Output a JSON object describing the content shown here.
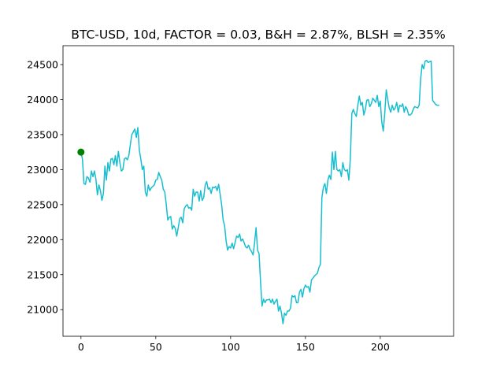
{
  "chart_data": {
    "type": "line",
    "title": "BTC-USD, 10d, FACTOR = 0.03, B&H = 2.87%, BLSH = 2.35%",
    "xlabel": "",
    "ylabel": "",
    "xlim": [
      -12,
      249
    ],
    "ylim": [
      20620,
      24770
    ],
    "x_ticks": [
      0,
      50,
      100,
      150,
      200
    ],
    "y_ticks": [
      21000,
      21500,
      22000,
      22500,
      23000,
      23500,
      24000,
      24500
    ],
    "grid": false,
    "line_color": "#17becf",
    "marker_color": "#008000",
    "markers": [
      {
        "x": 0,
        "y": 23250
      }
    ],
    "series": [
      {
        "x_start": 0,
        "x_step": 1,
        "values": [
          23250,
          23150,
          22800,
          22790,
          22900,
          22880,
          22820,
          22980,
          22900,
          22980,
          22860,
          22640,
          22780,
          22700,
          22560,
          22660,
          23050,
          22850,
          23100,
          22980,
          23150,
          23160,
          23070,
          23200,
          23050,
          23260,
          23100,
          22980,
          23000,
          23150,
          23170,
          23140,
          23200,
          23360,
          23500,
          23540,
          23580,
          23460,
          23600,
          23280,
          23150,
          23000,
          23050,
          22680,
          22620,
          22780,
          22700,
          22740,
          22760,
          22780,
          22850,
          22860,
          22960,
          22900,
          22850,
          22720,
          22680,
          22500,
          22280,
          22320,
          22330,
          22150,
          22200,
          22160,
          22050,
          22170,
          22300,
          22320,
          22240,
          22440,
          22480,
          22500,
          22450,
          22460,
          22420,
          22720,
          22620,
          22680,
          22680,
          22550,
          22700,
          22560,
          22600,
          22780,
          22830,
          22720,
          22740,
          22660,
          22750,
          22740,
          22760,
          22700,
          22790,
          22650,
          22500,
          22280,
          22200,
          21980,
          21850,
          21900,
          21880,
          21950,
          21870,
          21960,
          22050,
          22030,
          22080,
          21980,
          22010,
          21960,
          21900,
          21880,
          21920,
          21860,
          21830,
          21780,
          21950,
          22170,
          21850,
          21800,
          21400,
          21050,
          21150,
          21100,
          21140,
          21140,
          21150,
          21100,
          21150,
          21080,
          21120,
          21150,
          20980,
          21050,
          20950,
          20800,
          20950,
          20920,
          20980,
          20980,
          21020,
          21200,
          21180,
          21200,
          21100,
          21100,
          21250,
          21290,
          21180,
          21300,
          21350,
          21320,
          21330,
          21250,
          21420,
          21450,
          21480,
          21500,
          21520,
          21600,
          21650,
          22600,
          22750,
          22800,
          22660,
          22850,
          22920,
          22860,
          23250,
          23000,
          23260,
          23000,
          22980,
          23000,
          22900,
          23100,
          23000,
          22980,
          23000,
          22850,
          23160,
          23800,
          23860,
          23800,
          23760,
          23920,
          24050,
          23920,
          23960,
          23780,
          23860,
          23990,
          24000,
          23900,
          23940,
          24020,
          23990,
          23960,
          24060,
          23900,
          23980,
          23680,
          23550,
          23800,
          24140,
          24000,
          23880,
          23820,
          23920,
          23850,
          23880,
          23960,
          23820,
          23920,
          23900,
          23940,
          23820,
          23900,
          23860,
          23780,
          23780,
          23800,
          23860,
          23900,
          23890,
          23880,
          23920,
          24300,
          24500,
          24440,
          24550,
          24560,
          24530,
          24540,
          24550,
          23990,
          23960,
          23930,
          23920,
          23920
        ]
      }
    ]
  }
}
